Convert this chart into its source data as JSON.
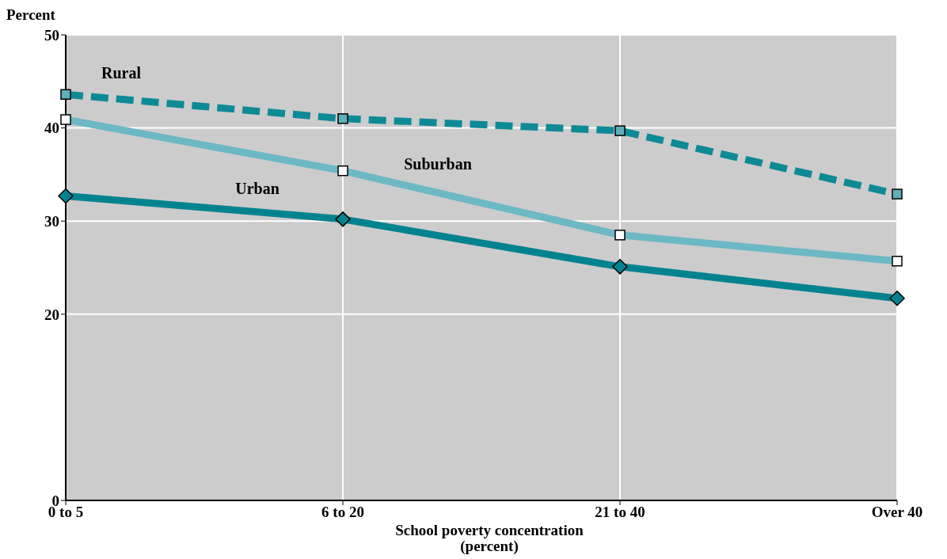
{
  "chart_data": {
    "type": "line",
    "ylabel": "Percent",
    "xlabel": "School poverty concentration\n(percent)",
    "categories": [
      "0 to 5",
      "6 to 20",
      "21 to 40",
      "Over 40"
    ],
    "series": [
      {
        "name": "Rural",
        "color": "#0e8a96",
        "values": [
          43.6,
          41.0,
          39.7,
          32.9
        ],
        "line_style": "dashed",
        "marker": "square"
      },
      {
        "name": "Suburban",
        "color": "#6cb8c4",
        "values": [
          40.9,
          35.4,
          28.5,
          25.7
        ],
        "line_style": "solid",
        "marker": "square"
      },
      {
        "name": "Urban",
        "color": "#00838f",
        "values": [
          32.7,
          30.2,
          25.1,
          21.7
        ],
        "line_style": "solid",
        "marker": "diamond"
      }
    ],
    "ylim": [
      0,
      50
    ],
    "yticks": [
      0,
      20,
      30,
      40,
      50
    ],
    "grid": true
  }
}
